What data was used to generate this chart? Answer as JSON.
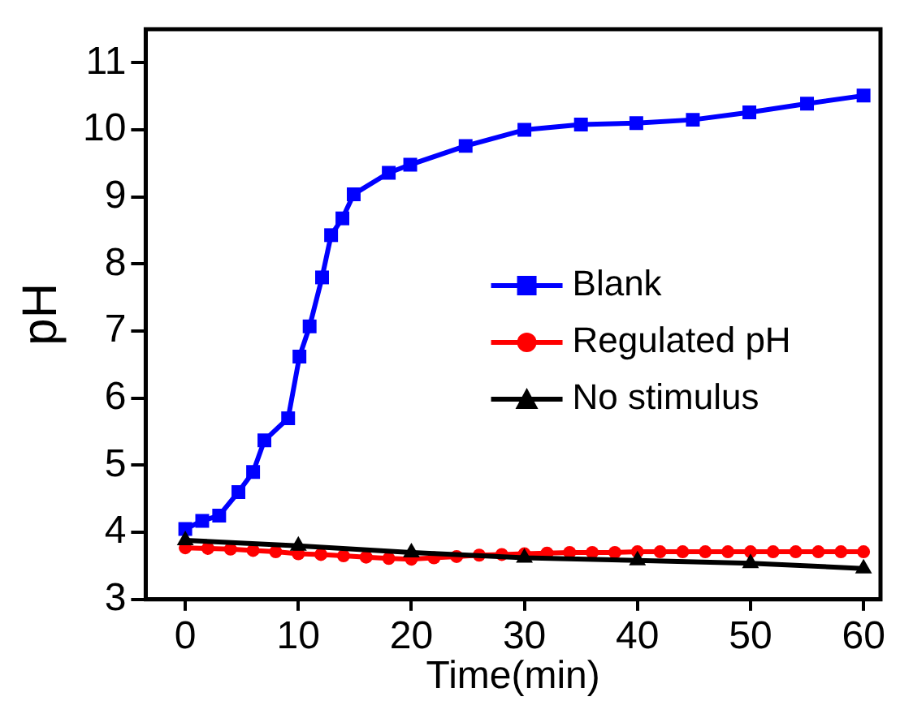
{
  "chart_data": {
    "type": "line",
    "xlabel": "Time(min)",
    "ylabel": "pH",
    "xlim": [
      -3.5,
      61.5
    ],
    "ylim": [
      3,
      11.5
    ],
    "xticks": [
      0,
      10,
      20,
      30,
      40,
      50,
      60
    ],
    "yticks": [
      3,
      4,
      5,
      6,
      7,
      8,
      9,
      10,
      11
    ],
    "grid": false,
    "legend": "right",
    "line_style": "solid",
    "series": [
      {
        "name": "Blank",
        "color": "#0000ff",
        "marker": "square",
        "x": [
          0,
          1.5,
          3,
          4.7,
          6,
          7,
          9.1,
          10.1,
          11,
          12.1,
          12.9,
          13.9,
          14.9,
          18,
          19.9,
          24.8,
          30,
          35,
          39.9,
          44.9,
          49.9,
          55,
          60
        ],
        "values": [
          4.05,
          4.17,
          4.25,
          4.6,
          4.9,
          5.37,
          5.7,
          6.62,
          7.07,
          7.8,
          8.43,
          8.68,
          9.04,
          9.36,
          9.48,
          9.76,
          10.0,
          10.08,
          10.1,
          10.15,
          10.26,
          10.39,
          10.51
        ]
      },
      {
        "name": "Regulated pH",
        "color": "#ff0000",
        "marker": "circle",
        "x": [
          0,
          2,
          4,
          6,
          8,
          10,
          12,
          14,
          16,
          18,
          20,
          22,
          24,
          26,
          28,
          30,
          32,
          34,
          36,
          38,
          40,
          42,
          44,
          46,
          48,
          50,
          52,
          54,
          56,
          58,
          60
        ],
        "values": [
          3.77,
          3.76,
          3.75,
          3.73,
          3.71,
          3.68,
          3.67,
          3.65,
          3.63,
          3.61,
          3.6,
          3.62,
          3.64,
          3.66,
          3.67,
          3.68,
          3.69,
          3.7,
          3.7,
          3.7,
          3.71,
          3.71,
          3.71,
          3.71,
          3.71,
          3.71,
          3.71,
          3.71,
          3.71,
          3.71,
          3.71
        ]
      },
      {
        "name": "No stimulus",
        "color": "#000000",
        "marker": "triangle",
        "x": [
          0,
          10,
          20,
          30,
          40,
          50,
          60
        ],
        "values": [
          3.88,
          3.8,
          3.7,
          3.62,
          3.58,
          3.54,
          3.46
        ]
      }
    ]
  }
}
